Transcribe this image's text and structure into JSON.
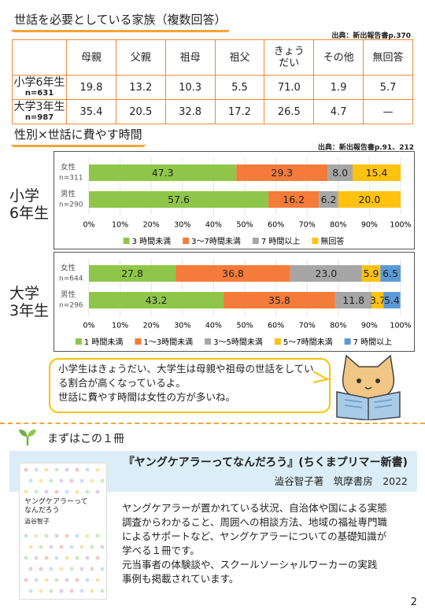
{
  "section1": {
    "title": "世話を必要としている家族（複数回答）",
    "source": "出典：新出報告書p.370"
  },
  "table": {
    "header": [
      "母親",
      "父親",
      "祖母",
      "祖父",
      "きょうだい",
      "その他",
      "無回答"
    ],
    "rows": [
      {
        "label": "小学6年生",
        "n": "n=631",
        "cells": [
          "19.8",
          "13.2",
          "10.3",
          "5.5",
          "71.0",
          "1.9",
          "5.7"
        ]
      },
      {
        "label": "大学3年生",
        "n": "n=987",
        "cells": [
          "35.4",
          "20.5",
          "32.8",
          "17.2",
          "26.5",
          "4.7",
          "—"
        ]
      }
    ]
  },
  "section2": {
    "title": "性別×世話に費やす時間",
    "source": "出典：新出報告書p.91、212"
  },
  "chart_data": [
    {
      "type": "stacked-bar-horizontal",
      "group_label": [
        "小学",
        "6年生"
      ],
      "categories": [
        "女性",
        "男性"
      ],
      "category_notes": [
        "n=311",
        "n=290"
      ],
      "series": [
        {
          "name": "3 時間未満",
          "color": "#8fc64a",
          "values": [
            47.3,
            57.6
          ],
          "value_labels": [
            "47.3",
            "57.6"
          ]
        },
        {
          "name": "3〜7時間未満",
          "color": "#f47b3a",
          "values": [
            29.3,
            16.2
          ],
          "value_labels": [
            "29.3",
            "16.2"
          ]
        },
        {
          "name": "7 時間以上",
          "color": "#a6a6a6",
          "values": [
            8,
            6.2
          ],
          "value_labels": [
            "8.0",
            "6.2"
          ]
        },
        {
          "name": "無回答",
          "color": "#ffc20e",
          "values": [
            15.4,
            20
          ],
          "value_labels": [
            "15.4",
            "20.0"
          ]
        }
      ],
      "xlim": [
        0,
        100
      ],
      "xticks": [
        {
          "value": 0,
          "label": "0%"
        },
        {
          "value": 10,
          "label": "10%"
        },
        {
          "value": 20,
          "label": "20%"
        },
        {
          "value": 30,
          "label": "30%"
        },
        {
          "value": 40,
          "label": "40%"
        },
        {
          "value": 50,
          "label": "50%"
        },
        {
          "value": 60,
          "label": "60%"
        },
        {
          "value": 70,
          "label": "70%"
        },
        {
          "value": 80,
          "label": "80%"
        },
        {
          "value": 90,
          "label": "90%"
        },
        {
          "value": 100,
          "label": "100%"
        }
      ],
      "grid": true
    },
    {
      "type": "stacked-bar-horizontal",
      "group_label": [
        "大学",
        "3年生"
      ],
      "categories": [
        "女性",
        "男性"
      ],
      "category_notes": [
        "n=644",
        "n=296"
      ],
      "series": [
        {
          "name": "1 時間未満",
          "color": "#8fc64a",
          "values": [
            27.8,
            43.2
          ],
          "value_labels": [
            "27.8",
            "43.2"
          ]
        },
        {
          "name": "1〜3時間未満",
          "color": "#f47b3a",
          "values": [
            36.8,
            35.8
          ],
          "value_labels": [
            "36.8",
            "35.8"
          ]
        },
        {
          "name": "3〜5時間未満",
          "color": "#a6a6a6",
          "values": [
            23,
            11.8
          ],
          "value_labels": [
            "23.0",
            "11.8"
          ]
        },
        {
          "name": "5〜7時間未満",
          "color": "#ffc20e",
          "values": [
            5.9,
            3.7
          ],
          "value_labels": [
            "5.9",
            "3.7"
          ]
        },
        {
          "name": "7 時間以上",
          "color": "#5b9bd5",
          "values": [
            6.5,
            5.4
          ],
          "value_labels": [
            "6.5",
            "5.4"
          ]
        }
      ],
      "xlim": [
        0,
        100
      ],
      "xticks": [
        {
          "value": 0,
          "label": "0%"
        },
        {
          "value": 10,
          "label": "10%"
        },
        {
          "value": 20,
          "label": "20%"
        },
        {
          "value": 30,
          "label": "30%"
        },
        {
          "value": 40,
          "label": "40%"
        },
        {
          "value": 50,
          "label": "50%"
        },
        {
          "value": 60,
          "label": "60%"
        },
        {
          "value": 70,
          "label": "70%"
        },
        {
          "value": 80,
          "label": "80%"
        },
        {
          "value": 90,
          "label": "90%"
        },
        {
          "value": 100,
          "label": "100%"
        }
      ],
      "grid": true
    }
  ],
  "bubble": {
    "paragraphs": [
      "小学生はきょうだい、大学生は母親や祖母の世話をしている割合が高くなっているよ。",
      "世話に費やす時間は女性の方が多いね。"
    ]
  },
  "book_section": {
    "heading": "まずはこの１冊",
    "title": "『ヤングケアラーってなんだろう』(ちくまプリマー新書)",
    "publisher": "澁谷智子著　筑摩書房　2022",
    "cover": {
      "title_lines": [
        "ヤングケアラーって",
        "なんだろう"
      ],
      "author": "澁谷智子"
    },
    "description": [
      "ヤングケアラーが置かれている状況、自治体や国による実態",
      "調査からわかること、周囲への相談方法、地域の福祉専門職",
      "によるサポートなど、ヤングケアラーについての基礎知識が",
      "学べる１冊です。",
      "元当事者の体験談や、スクールソーシャルワーカーの実践",
      "事例も掲載されています。"
    ]
  },
  "page_number": "2"
}
